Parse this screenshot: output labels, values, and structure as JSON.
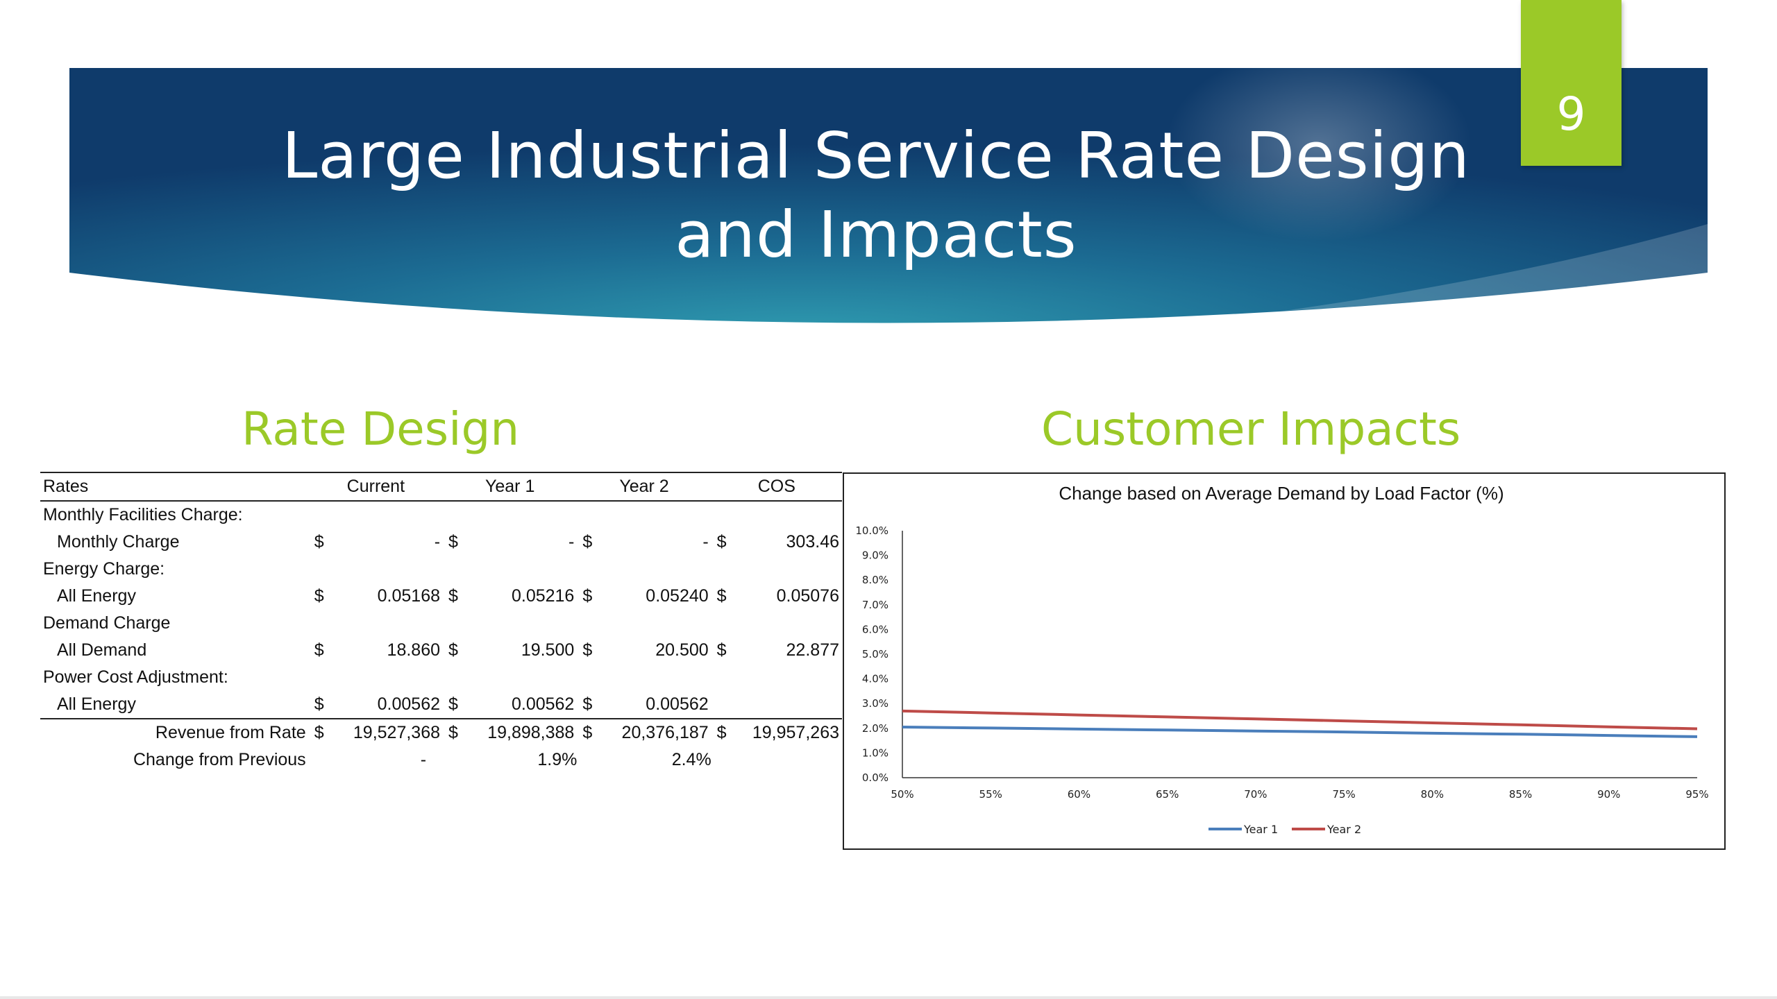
{
  "slide": {
    "title_line1": "Large Industrial Service Rate Design",
    "title_line2": "and Impacts",
    "number": "9",
    "colors": {
      "accent": "#9bc928",
      "banner_dark": "#0f3b6b",
      "banner_mid": "#2a8aa6"
    }
  },
  "rate_design": {
    "heading": "Rate Design",
    "columns": [
      "Rates",
      "Current",
      "Year 1",
      "Year 2",
      "COS"
    ],
    "currency": "$",
    "rows": [
      {
        "label": "Monthly Facilities Charge:"
      },
      {
        "label": "Monthly Charge",
        "current": "-",
        "year1": "-",
        "year2": "-",
        "cos": "303.46"
      },
      {
        "label": "Energy Charge:"
      },
      {
        "label": "All Energy",
        "current": "0.05168",
        "year1": "0.05216",
        "year2": "0.05240",
        "cos": "0.05076"
      },
      {
        "label": "Demand Charge"
      },
      {
        "label": "All Demand",
        "current": "18.860",
        "year1": "19.500",
        "year2": "20.500",
        "cos": "22.877"
      },
      {
        "label": "Power Cost Adjustment:"
      },
      {
        "label": "All Energy",
        "current": "0.00562",
        "year1": "0.00562",
        "year2": "0.00562"
      }
    ],
    "revenue": {
      "label": "Revenue from Rate",
      "current": "19,527,368",
      "year1": "19,898,388",
      "year2": "20,376,187",
      "cos": "19,957,263"
    },
    "change": {
      "label": "Change from Previous",
      "current": "-",
      "year1": "1.9%",
      "year2": "2.4%"
    }
  },
  "customer_impacts": {
    "heading": "Customer Impacts"
  },
  "chart_data": {
    "type": "line",
    "title": "Change based on Average Demand by Load Factor (%)",
    "xlabel": "",
    "ylabel": "",
    "x": [
      "50%",
      "55%",
      "60%",
      "65%",
      "70%",
      "75%",
      "80%",
      "85%",
      "90%",
      "95%"
    ],
    "y_ticks": [
      "0.0%",
      "1.0%",
      "2.0%",
      "3.0%",
      "4.0%",
      "5.0%",
      "6.0%",
      "7.0%",
      "8.0%",
      "9.0%",
      "10.0%"
    ],
    "ylim": [
      0,
      10
    ],
    "grid": false,
    "legend": "bottom",
    "series": [
      {
        "name": "Year 1",
        "color": "#4a7ebb",
        "values": [
          2.05,
          2.01,
          1.97,
          1.93,
          1.89,
          1.85,
          1.8,
          1.76,
          1.71,
          1.66
        ]
      },
      {
        "name": "Year 2",
        "color": "#be4b48",
        "values": [
          2.7,
          2.62,
          2.54,
          2.46,
          2.38,
          2.3,
          2.22,
          2.14,
          2.06,
          1.98
        ]
      }
    ]
  }
}
